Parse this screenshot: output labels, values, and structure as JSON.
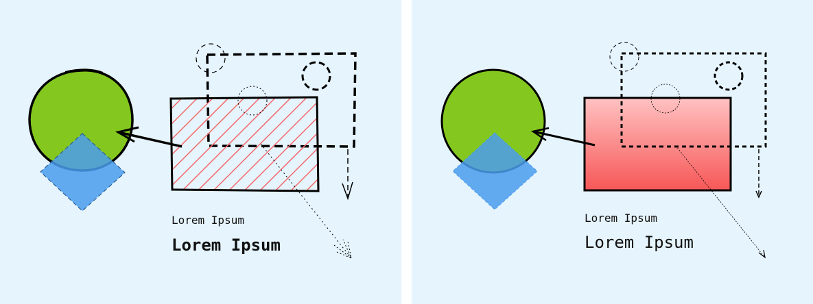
{
  "colors": {
    "background": "#e6f4fd",
    "circle_fill": "#84c81f",
    "diamond_fill": "#4a9ced",
    "rect_hatch": "#f26a6a",
    "rect_gradient_top": "#ffc2c2",
    "rect_gradient_bottom": "#f75757",
    "stroke": "#000000"
  },
  "panels": [
    {
      "style": "sketchy",
      "text_small": "Lorem Ipsum",
      "text_large": "Lorem Ipsum"
    },
    {
      "style": "clean",
      "text_small": "Lorem Ipsum",
      "text_large": "Lorem Ipsum"
    }
  ]
}
